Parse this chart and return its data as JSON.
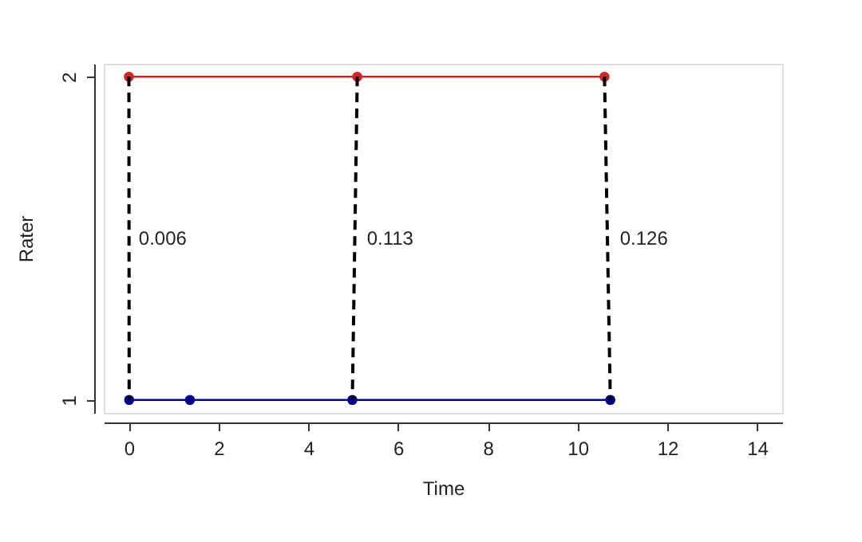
{
  "chart_data": {
    "type": "line",
    "xlabel": "Time",
    "ylabel": "Rater",
    "xlim": [
      -0.56,
      14.56
    ],
    "xticks": [
      0,
      2,
      4,
      6,
      8,
      10,
      12,
      14
    ],
    "ylim": [
      0.96,
      2.04
    ],
    "yticks": [
      1,
      2
    ],
    "grid": false,
    "marker": "circle",
    "series": [
      {
        "color": "#cd2626",
        "x": [
          0,
          5.09,
          10.6
        ],
        "values": [
          2,
          2,
          2
        ],
        "line_style": "solid"
      },
      {
        "color": "#00008b",
        "x": [
          0.006,
          1.36,
          4.98,
          10.73
        ],
        "values": [
          1,
          1,
          1,
          1
        ],
        "line_style": "solid"
      },
      {
        "color": "#000000",
        "x": [
          0,
          0.006
        ],
        "values": [
          2,
          1
        ],
        "marker": "none",
        "line_style": "dashed"
      },
      {
        "color": "#000000",
        "x": [
          5.09,
          4.98
        ],
        "values": [
          2,
          1
        ],
        "marker": "none",
        "line_style": "dashed"
      },
      {
        "color": "#000000",
        "x": [
          10.6,
          10.73
        ],
        "values": [
          2,
          1
        ],
        "marker": "none",
        "line_style": "dashed"
      }
    ],
    "annotations": [
      {
        "text": "0.006",
        "x": 0.006,
        "y": 1.5
      },
      {
        "text": "0.113",
        "x": 5.09,
        "y": 1.5
      },
      {
        "text": "0.126",
        "x": 10.73,
        "y": 1.5
      }
    ]
  }
}
